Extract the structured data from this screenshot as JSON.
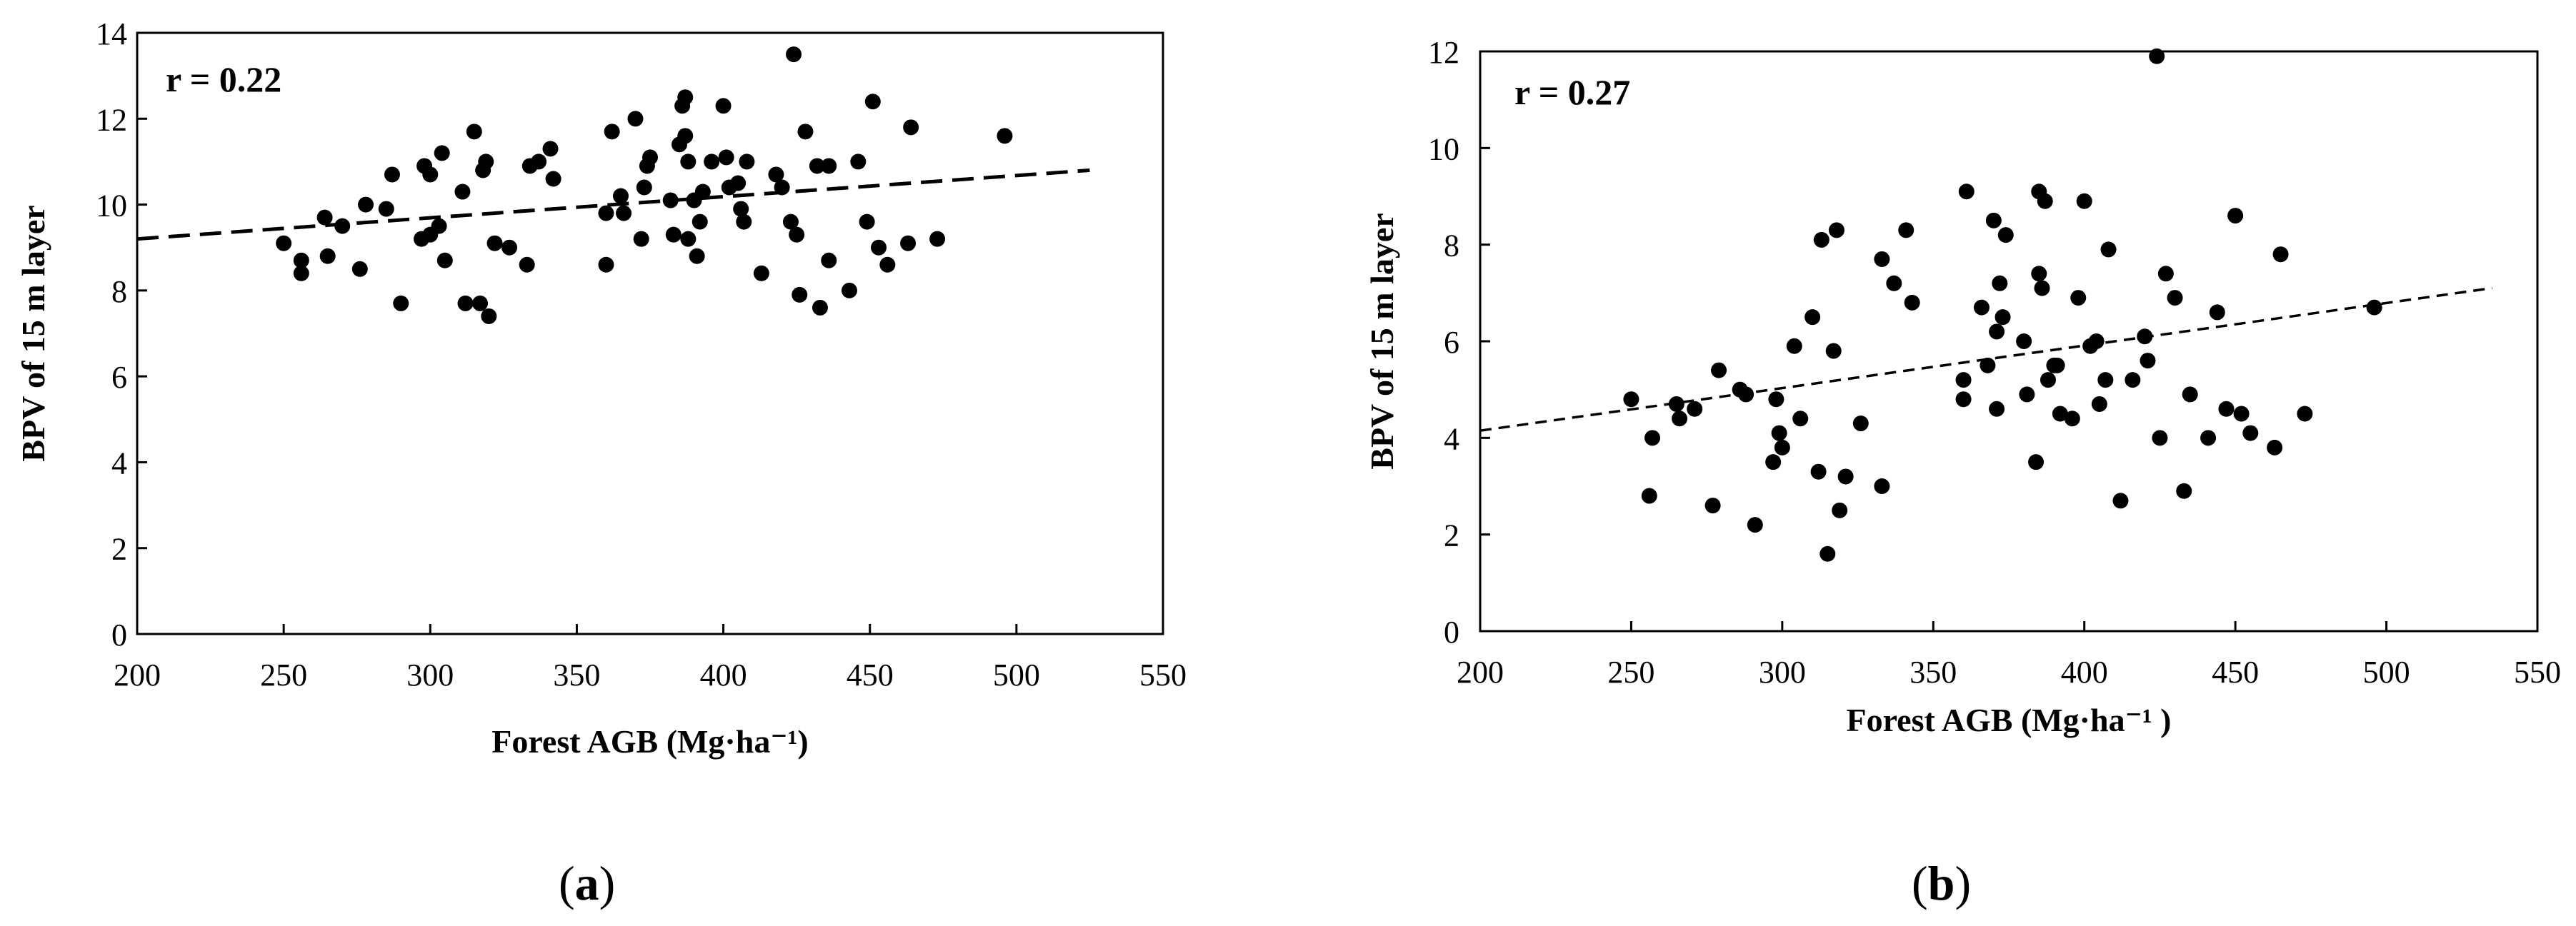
{
  "chart_data": [
    {
      "type": "scatter",
      "panel_label": "a",
      "annotation": "r = 0.22",
      "xlabel": "Forest AGB (Mg·ha⁻¹)",
      "ylabel": "BPV of 15 m layer",
      "xlim": [
        200,
        550
      ],
      "ylim": [
        0,
        14
      ],
      "xticks": [
        200,
        250,
        300,
        350,
        400,
        450,
        500,
        550
      ],
      "yticks": [
        0,
        2,
        4,
        6,
        8,
        10,
        12,
        14
      ],
      "grid": false,
      "trendline": {
        "style": "dashed",
        "x": [
          200,
          525
        ],
        "y": [
          9.2,
          10.8
        ]
      },
      "points": [
        [
          250,
          9.1
        ],
        [
          256,
          8.4
        ],
        [
          256,
          8.7
        ],
        [
          264,
          9.7
        ],
        [
          265,
          8.8
        ],
        [
          270,
          9.5
        ],
        [
          276,
          8.5
        ],
        [
          278,
          10.0
        ],
        [
          285,
          9.9
        ],
        [
          287,
          10.7
        ],
        [
          290,
          7.7
        ],
        [
          297,
          9.2
        ],
        [
          298,
          10.9
        ],
        [
          300,
          10.7
        ],
        [
          300,
          9.3
        ],
        [
          303,
          9.5
        ],
        [
          304,
          11.2
        ],
        [
          305,
          8.7
        ],
        [
          311,
          10.3
        ],
        [
          312,
          7.7
        ],
        [
          315,
          11.7
        ],
        [
          317,
          7.7
        ],
        [
          318,
          10.8
        ],
        [
          319,
          11.0
        ],
        [
          320,
          7.4
        ],
        [
          322,
          9.1
        ],
        [
          327,
          9.0
        ],
        [
          333,
          8.6
        ],
        [
          334,
          10.9
        ],
        [
          337,
          11.0
        ],
        [
          341,
          11.3
        ],
        [
          342,
          10.6
        ],
        [
          360,
          9.8
        ],
        [
          360,
          8.6
        ],
        [
          362,
          11.7
        ],
        [
          365,
          10.2
        ],
        [
          366,
          9.8
        ],
        [
          370,
          12.0
        ],
        [
          372,
          9.2
        ],
        [
          373,
          10.4
        ],
        [
          374,
          10.9
        ],
        [
          375,
          11.1
        ],
        [
          382,
          10.1
        ],
        [
          383,
          9.3
        ],
        [
          385,
          11.4
        ],
        [
          386,
          12.3
        ],
        [
          387,
          12.5
        ],
        [
          387,
          11.6
        ],
        [
          388,
          9.2
        ],
        [
          388,
          11.0
        ],
        [
          390,
          10.1
        ],
        [
          391,
          8.8
        ],
        [
          392,
          9.6
        ],
        [
          393,
          10.3
        ],
        [
          396,
          11.0
        ],
        [
          400,
          12.3
        ],
        [
          401,
          11.1
        ],
        [
          402,
          10.4
        ],
        [
          405,
          10.5
        ],
        [
          406,
          9.9
        ],
        [
          407,
          9.6
        ],
        [
          408,
          11.0
        ],
        [
          413,
          8.4
        ],
        [
          418,
          10.7
        ],
        [
          420,
          10.4
        ],
        [
          423,
          9.6
        ],
        [
          424,
          13.5
        ],
        [
          425,
          9.3
        ],
        [
          426,
          7.9
        ],
        [
          428,
          11.7
        ],
        [
          432,
          10.9
        ],
        [
          433,
          7.6
        ],
        [
          436,
          8.7
        ],
        [
          436,
          10.9
        ],
        [
          443,
          8.0
        ],
        [
          446,
          11.0
        ],
        [
          449,
          9.6
        ],
        [
          451,
          12.4
        ],
        [
          453,
          9.0
        ],
        [
          456,
          8.6
        ],
        [
          463,
          9.1
        ],
        [
          464,
          11.8
        ],
        [
          473,
          9.2
        ],
        [
          496,
          11.6
        ]
      ]
    },
    {
      "type": "scatter",
      "panel_label": "b",
      "annotation": "r = 0.27",
      "xlabel": "Forest AGB (Mg·ha⁻¹ )",
      "ylabel": "BPV of 15 m layer",
      "xlim": [
        200,
        550
      ],
      "ylim": [
        0,
        12
      ],
      "xticks": [
        200,
        250,
        300,
        350,
        400,
        450,
        500,
        550
      ],
      "yticks": [
        0,
        2,
        4,
        6,
        8,
        10,
        12
      ],
      "grid": false,
      "trendline": {
        "style": "dashed",
        "x": [
          200,
          535
        ],
        "y": [
          4.15,
          7.1
        ]
      },
      "points": [
        [
          250,
          4.8
        ],
        [
          256,
          2.8
        ],
        [
          257,
          4.0
        ],
        [
          265,
          4.7
        ],
        [
          266,
          4.4
        ],
        [
          271,
          4.6
        ],
        [
          277,
          2.6
        ],
        [
          279,
          5.4
        ],
        [
          286,
          5.0
        ],
        [
          288,
          4.9
        ],
        [
          291,
          2.2
        ],
        [
          297,
          3.5
        ],
        [
          298,
          4.8
        ],
        [
          299,
          4.1
        ],
        [
          300,
          3.8
        ],
        [
          304,
          5.9
        ],
        [
          306,
          4.4
        ],
        [
          310,
          6.5
        ],
        [
          312,
          3.3
        ],
        [
          313,
          8.1
        ],
        [
          315,
          1.6
        ],
        [
          317,
          5.8
        ],
        [
          318,
          8.3
        ],
        [
          319,
          2.5
        ],
        [
          321,
          3.2
        ],
        [
          326,
          4.3
        ],
        [
          333,
          3.0
        ],
        [
          333,
          7.7
        ],
        [
          337,
          7.2
        ],
        [
          341,
          8.3
        ],
        [
          343,
          6.8
        ],
        [
          360,
          5.2
        ],
        [
          360,
          4.8
        ],
        [
          361,
          9.1
        ],
        [
          366,
          6.7
        ],
        [
          368,
          5.5
        ],
        [
          370,
          8.5
        ],
        [
          371,
          6.2
        ],
        [
          371,
          4.6
        ],
        [
          372,
          7.2
        ],
        [
          373,
          6.5
        ],
        [
          374,
          8.2
        ],
        [
          380,
          6.0
        ],
        [
          381,
          4.9
        ],
        [
          384,
          3.5
        ],
        [
          385,
          9.1
        ],
        [
          385,
          7.4
        ],
        [
          386,
          7.1
        ],
        [
          387,
          8.9
        ],
        [
          388,
          5.2
        ],
        [
          390,
          5.5
        ],
        [
          391,
          5.5
        ],
        [
          392,
          4.5
        ],
        [
          396,
          4.4
        ],
        [
          398,
          6.9
        ],
        [
          400,
          8.9
        ],
        [
          402,
          5.9
        ],
        [
          404,
          6.0
        ],
        [
          405,
          4.7
        ],
        [
          407,
          5.2
        ],
        [
          408,
          7.9
        ],
        [
          412,
          2.7
        ],
        [
          416,
          5.2
        ],
        [
          420,
          6.1
        ],
        [
          421,
          5.6
        ],
        [
          424,
          11.9
        ],
        [
          425,
          4.0
        ],
        [
          427,
          7.4
        ],
        [
          430,
          6.9
        ],
        [
          433,
          2.9
        ],
        [
          435,
          4.9
        ],
        [
          441,
          4.0
        ],
        [
          444,
          6.6
        ],
        [
          447,
          4.6
        ],
        [
          450,
          8.6
        ],
        [
          452,
          4.5
        ],
        [
          455,
          4.1
        ],
        [
          463,
          3.8
        ],
        [
          465,
          7.8
        ],
        [
          473,
          4.5
        ],
        [
          496,
          6.7
        ]
      ]
    }
  ],
  "captions": [
    {
      "open": "(",
      "letter": "a",
      "close": ")"
    },
    {
      "open": "(",
      "letter": "b",
      "close": ")"
    }
  ]
}
